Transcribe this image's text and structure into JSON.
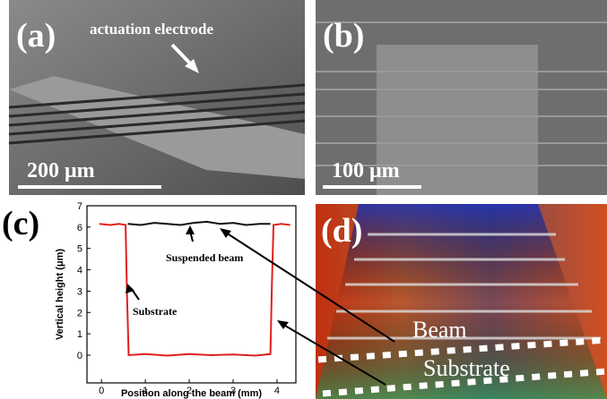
{
  "panels": {
    "a": {
      "label": "(a)",
      "annotation": "actuation electrode",
      "scale_bar": "200 μm"
    },
    "b": {
      "label": "(b)",
      "scale_bar": "100 μm"
    },
    "c": {
      "label": "(c)"
    },
    "d": {
      "label": "(d)",
      "annotations": [
        "Beam",
        "Substrate"
      ]
    }
  },
  "chart_data": {
    "type": "line",
    "x_label": "Position along the beam (mm)",
    "y_label": "Vertical height (μm)",
    "xlim": [
      -0.33,
      4.43
    ],
    "xticks": [
      0,
      1,
      2,
      3,
      4
    ],
    "ylim": [
      -1.3,
      7
    ],
    "yticks": [
      0,
      1,
      2,
      3,
      4,
      5,
      6,
      7
    ],
    "annotations": [
      "Suspended beam",
      "Substrate"
    ],
    "series": [
      {
        "color": "#e02020",
        "x": [
          -0.05,
          0.2,
          0.4,
          0.55,
          0.58,
          0.62,
          1,
          1.5,
          2,
          2.5,
          3,
          3.5,
          3.85,
          3.88,
          3.92,
          4.1,
          4.3
        ],
        "values": [
          6.15,
          6.1,
          6.15,
          6.1,
          3,
          0,
          0.05,
          -0.02,
          0.05,
          0,
          0.03,
          -0.02,
          0.05,
          3,
          6.1,
          6.15,
          6.1
        ]
      },
      {
        "color": "#111111",
        "x": [
          0.6,
          0.9,
          1.2,
          1.5,
          1.8,
          2.1,
          2.4,
          2.7,
          3,
          3.3,
          3.6,
          3.85
        ],
        "values": [
          6.15,
          6.1,
          6.2,
          6.15,
          6.1,
          6.2,
          6.25,
          6.15,
          6.2,
          6.1,
          6.15,
          6.15
        ]
      }
    ]
  }
}
